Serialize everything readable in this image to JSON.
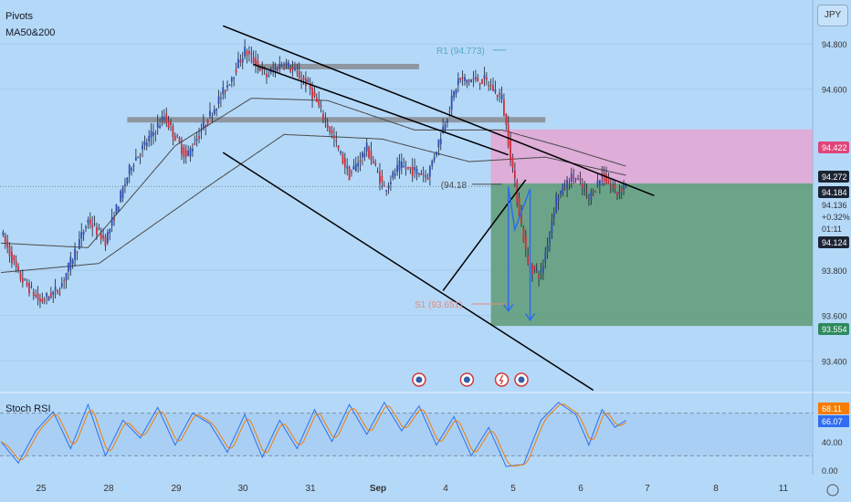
{
  "header": {
    "indicator_1": "Pivots",
    "indicator_2": "MA50&200",
    "currency_label": "JPY"
  },
  "colors": {
    "background": "#b4d8f8",
    "up_candle": "#2e4fb0",
    "down_candle": "#cf2f3a",
    "ma": "#4a4a4a",
    "zone": "#8a8f96",
    "channel": "#000000",
    "target_zone": "#5f9b76",
    "stop_zone": "#e2a8d4",
    "arrow": "#2b6ee8",
    "pivot_r1": "#58a8c8",
    "pivot_s1": "#e88a7a",
    "stoch_k": "#2f6ef0",
    "stoch_d": "#f57c00"
  },
  "chart_data": {
    "type": "candlestick",
    "symbol_quote": "JPY",
    "ylim": [
      93.26,
      94.97
    ],
    "y_ticks": [
      {
        "value": 94.8,
        "label": "94.800"
      },
      {
        "value": 94.6,
        "label": "94.600"
      },
      {
        "value": 93.8,
        "label": "93.800"
      },
      {
        "value": 93.6,
        "label": "93.600"
      },
      {
        "value": 93.4,
        "label": "93.400"
      }
    ],
    "x_ticks": [
      "25",
      "28",
      "29",
      "30",
      "31",
      "Sep",
      "4",
      "5",
      "6",
      "7",
      "8",
      "11"
    ],
    "price_anchors": [
      {
        "slot": 0,
        "price": 93.97
      },
      {
        "slot": 8,
        "price": 93.78
      },
      {
        "slot": 18,
        "price": 93.66
      },
      {
        "slot": 27,
        "price": 93.72
      },
      {
        "slot": 40,
        "price": 94.02
      },
      {
        "slot": 48,
        "price": 93.93
      },
      {
        "slot": 60,
        "price": 94.27
      },
      {
        "slot": 75,
        "price": 94.48
      },
      {
        "slot": 85,
        "price": 94.3
      },
      {
        "slot": 104,
        "price": 94.62
      },
      {
        "slot": 112,
        "price": 94.77
      },
      {
        "slot": 122,
        "price": 94.66
      },
      {
        "slot": 130,
        "price": 94.72
      },
      {
        "slot": 141,
        "price": 94.62
      },
      {
        "slot": 151,
        "price": 94.42
      },
      {
        "slot": 160,
        "price": 94.22
      },
      {
        "slot": 168,
        "price": 94.34
      },
      {
        "slot": 176,
        "price": 94.16
      },
      {
        "slot": 183,
        "price": 94.26
      },
      {
        "slot": 196,
        "price": 94.22
      },
      {
        "slot": 210,
        "price": 94.64
      },
      {
        "slot": 222,
        "price": 94.64
      },
      {
        "slot": 230,
        "price": 94.56
      },
      {
        "slot": 237,
        "price": 94.12
      },
      {
        "slot": 242,
        "price": 93.82
      },
      {
        "slot": 248,
        "price": 93.78
      },
      {
        "slot": 255,
        "price": 94.12
      },
      {
        "slot": 263,
        "price": 94.22
      },
      {
        "slot": 270,
        "price": 94.12
      },
      {
        "slot": 276,
        "price": 94.22
      },
      {
        "slot": 283,
        "price": 94.14
      },
      {
        "slot": 287,
        "price": 94.19
      }
    ],
    "ma50_anchors": [
      {
        "slot": 0,
        "price": 93.92
      },
      {
        "slot": 40,
        "price": 93.9
      },
      {
        "slot": 80,
        "price": 94.35
      },
      {
        "slot": 115,
        "price": 94.56
      },
      {
        "slot": 150,
        "price": 94.55
      },
      {
        "slot": 190,
        "price": 94.42
      },
      {
        "slot": 230,
        "price": 94.42
      },
      {
        "slot": 260,
        "price": 94.34
      },
      {
        "slot": 287,
        "price": 94.26
      }
    ],
    "ma200_anchors": [
      {
        "slot": 0,
        "price": 93.79
      },
      {
        "slot": 45,
        "price": 93.83
      },
      {
        "slot": 95,
        "price": 94.17
      },
      {
        "slot": 130,
        "price": 94.4
      },
      {
        "slot": 175,
        "price": 94.38
      },
      {
        "slot": 215,
        "price": 94.28
      },
      {
        "slot": 250,
        "price": 94.3
      },
      {
        "slot": 287,
        "price": 94.22
      }
    ],
    "zones": [
      {
        "from_slot": 118,
        "to_slot": 192,
        "price": 94.7
      },
      {
        "from_slot": 58,
        "to_slot": 250,
        "price": 94.465
      }
    ],
    "channel_lines": [
      {
        "from": [
          102,
          94.88
        ],
        "to": [
          300,
          94.13
        ]
      },
      {
        "from": [
          116,
          94.71
        ],
        "to": [
          233,
          94.31
        ]
      },
      {
        "from": [
          102,
          94.32
        ],
        "to": [
          272,
          93.27
        ]
      },
      {
        "from": [
          203,
          93.71
        ],
        "to": [
          241,
          94.2
        ]
      }
    ],
    "pivots": [
      {
        "label": "R1 (94.773)",
        "price": 94.773,
        "label_slot": 200,
        "to_slot": 232
      },
      {
        "label": "(94.18",
        "price": 94.18,
        "label_slot": 202,
        "to_slot": 230
      },
      {
        "label": "S1 (93.651)",
        "price": 93.651,
        "label_slot": 190,
        "to_slot": 232
      }
    ],
    "position": {
      "entry": 94.184,
      "stop": 94.422,
      "target": 93.554,
      "from_slot": 225,
      "to_slot": 300
    },
    "price_labels": [
      {
        "text": "94.422",
        "style": "stop"
      },
      {
        "text": "94.272",
        "style": "dark"
      },
      {
        "text": "94.184",
        "style": "dark"
      },
      {
        "text": "94.136",
        "style": "plain"
      },
      {
        "text": "+0.32%",
        "style": "plain"
      },
      {
        "text": "01:11",
        "style": "plain"
      },
      {
        "text": "94.124",
        "style": "dark"
      },
      {
        "text": "93.554",
        "style": "target"
      }
    ],
    "stoch_rsi": {
      "title": "Stoch RSI",
      "ylim": [
        0,
        100
      ],
      "ticks": [
        {
          "value": 40,
          "label": "40.00"
        },
        {
          "value": 0,
          "label": "0.00"
        }
      ],
      "bands": [
        20,
        80
      ],
      "k_value_label": "66.07",
      "d_value_label": "68.11",
      "k_anchors": [
        {
          "slot": 0,
          "value": 40
        },
        {
          "slot": 8,
          "value": 10
        },
        {
          "slot": 16,
          "value": 55
        },
        {
          "slot": 24,
          "value": 82
        },
        {
          "slot": 32,
          "value": 30
        },
        {
          "slot": 40,
          "value": 92
        },
        {
          "slot": 48,
          "value": 20
        },
        {
          "slot": 56,
          "value": 70
        },
        {
          "slot": 64,
          "value": 45
        },
        {
          "slot": 72,
          "value": 88
        },
        {
          "slot": 80,
          "value": 35
        },
        {
          "slot": 88,
          "value": 80
        },
        {
          "slot": 96,
          "value": 65
        },
        {
          "slot": 104,
          "value": 25
        },
        {
          "slot": 112,
          "value": 78
        },
        {
          "slot": 120,
          "value": 18
        },
        {
          "slot": 128,
          "value": 70
        },
        {
          "slot": 136,
          "value": 30
        },
        {
          "slot": 144,
          "value": 85
        },
        {
          "slot": 152,
          "value": 40
        },
        {
          "slot": 160,
          "value": 92
        },
        {
          "slot": 168,
          "value": 50
        },
        {
          "slot": 176,
          "value": 95
        },
        {
          "slot": 184,
          "value": 55
        },
        {
          "slot": 192,
          "value": 90
        },
        {
          "slot": 200,
          "value": 35
        },
        {
          "slot": 208,
          "value": 75
        },
        {
          "slot": 216,
          "value": 20
        },
        {
          "slot": 224,
          "value": 60
        },
        {
          "slot": 232,
          "value": 5
        },
        {
          "slot": 240,
          "value": 8
        },
        {
          "slot": 248,
          "value": 70
        },
        {
          "slot": 256,
          "value": 95
        },
        {
          "slot": 264,
          "value": 78
        },
        {
          "slot": 270,
          "value": 35
        },
        {
          "slot": 276,
          "value": 85
        },
        {
          "slot": 282,
          "value": 60
        },
        {
          "slot": 287,
          "value": 70
        }
      ]
    },
    "events": [
      {
        "slot": 192,
        "type": "flag"
      },
      {
        "slot": 214,
        "type": "flag"
      },
      {
        "slot": 230,
        "type": "bolt"
      },
      {
        "slot": 239,
        "type": "flag"
      }
    ]
  }
}
